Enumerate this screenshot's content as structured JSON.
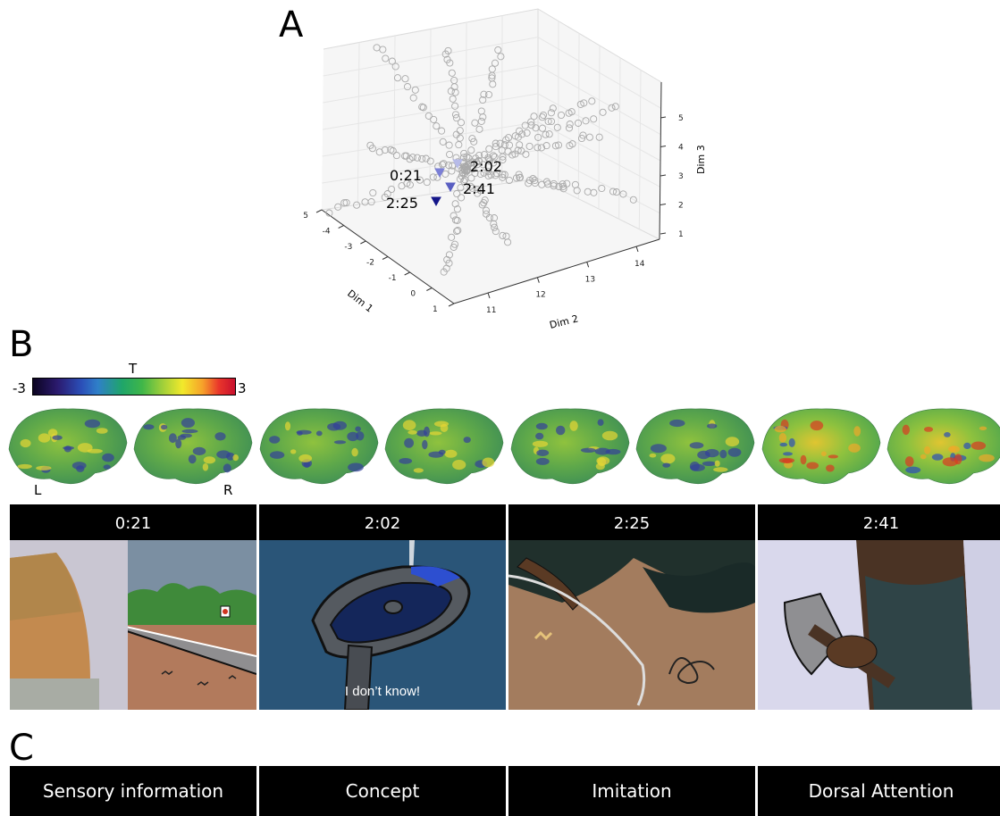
{
  "panels": {
    "a": "A",
    "b": "B",
    "c": "C"
  },
  "plot3d": {
    "axis_x_label": "Dim 1",
    "axis_y_label": "Dim 2",
    "axis_z_label": "Dim 3",
    "dim1_ticks": [
      "-5",
      "-4",
      "-3",
      "-2",
      "-1",
      "0",
      "1"
    ],
    "dim2_ticks": [
      "11",
      "12",
      "13",
      "14"
    ],
    "dim3_ticks": [
      "1",
      "2",
      "3",
      "4",
      "5"
    ],
    "markers": [
      {
        "label": "0:21",
        "color": "#7b7fd6"
      },
      {
        "label": "2:02",
        "color": "#b7bbe8"
      },
      {
        "label": "2:41",
        "color": "#5a5fc2"
      },
      {
        "label": "2:25",
        "color": "#14168a"
      }
    ]
  },
  "colorbar": {
    "title": "T",
    "min": "-3",
    "max": "3"
  },
  "hemispheres": {
    "left": "L",
    "right": "R"
  },
  "timepoints": [
    "0:21",
    "2:02",
    "2:25",
    "2:41"
  ],
  "frame_subtitle": "I don’t know!",
  "networks": [
    "Sensory information",
    "Concept",
    "Imitation",
    "Dorsal Attention"
  ]
}
